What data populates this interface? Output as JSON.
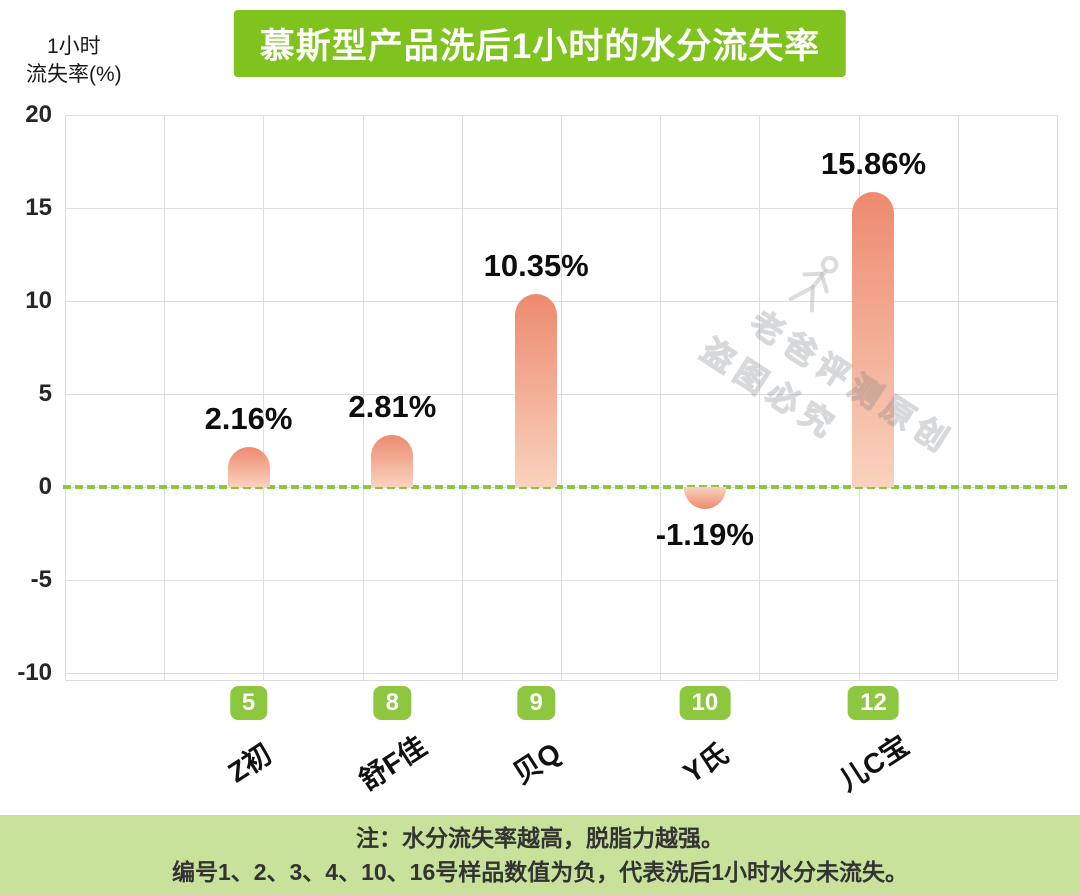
{
  "chart_data": {
    "type": "bar",
    "title": "慕斯型产品洗后1小时的水分流失率",
    "ylabel_line1": "1小时",
    "ylabel_line2": "流失率(%)",
    "categories": [
      "Z初",
      "舒F佳",
      "贝Q",
      "Y氏",
      "儿C宝"
    ],
    "sample_numbers": [
      "5",
      "8",
      "9",
      "10",
      "12"
    ],
    "values": [
      2.16,
      2.81,
      10.35,
      -1.19,
      15.86
    ],
    "value_labels": [
      "2.16%",
      "2.81%",
      "10.35%",
      "-1.19%",
      "15.86%"
    ],
    "ylim": [
      -10,
      20
    ],
    "yticks": [
      20,
      15,
      10,
      5,
      0,
      -5,
      -10
    ],
    "grid": true,
    "legend": "none",
    "accent_green": "#8dc63f",
    "title_green": "#80c31f",
    "bar_color_top": "#ed8a6f",
    "bar_color_bottom": "#f9d2bd",
    "zero_line_style": "dashed"
  },
  "footer": {
    "line1": "注：水分流失率越高，脱脂力越强。",
    "line2": "编号1、2、3、4、10、16号样品数值为负，代表洗后1小时水分未流失。"
  },
  "watermark": {
    "line1": "老爸评测原创",
    "line2": "盗图必究"
  }
}
